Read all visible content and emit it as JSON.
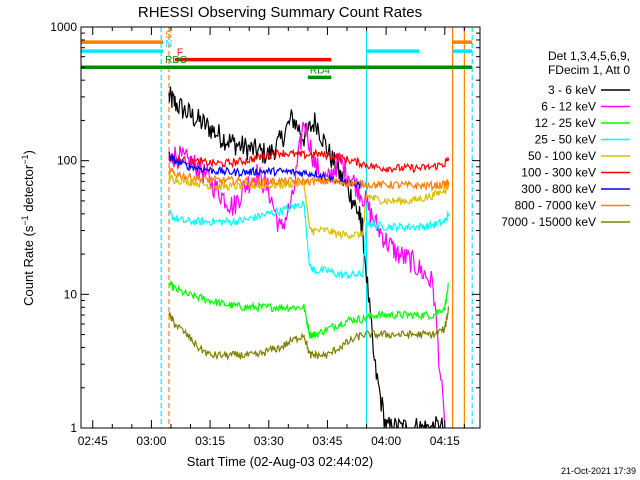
{
  "chart_data": {
    "type": "line",
    "title": "RHESSI Observing Summary Count Rates",
    "xlabel": "Start Time (02-Aug-03 02:44:02)",
    "ylabel": "Count Rate (s",
    "ylabel_sup": "−1",
    "ylabel_mid": " detector",
    "ylabel_close": ")",
    "yscale": "log",
    "ylim": [
      1,
      1000
    ],
    "xlim_minutes": [
      -2.0,
      100.0
    ],
    "x_ticks": [
      "02:45",
      "03:00",
      "03:15",
      "03:30",
      "03:45",
      "04:00",
      "04:15"
    ],
    "y_ticks": [
      "1",
      "10",
      "100",
      "1000"
    ],
    "legend_header": [
      "Det 1,3,4,5,6,9,",
      "FDecim 1, Att 0"
    ],
    "legend_position": "right",
    "timestamp": "21-Oct-2021 17:39",
    "flags": [
      {
        "name": "S",
        "color": "#ff8000",
        "segments": [
          [
            -2,
            19
          ],
          [
            93,
            98
          ]
        ],
        "level": 770
      },
      {
        "name": "N",
        "color": "#00e8f0",
        "segments": [
          [
            -2,
            19
          ],
          [
            71,
            84.5
          ],
          [
            93,
            98
          ]
        ],
        "level": 660
      },
      {
        "name": "F",
        "color": "#ff0000",
        "segments": [
          [
            22,
            62
          ]
        ],
        "level": 570
      },
      {
        "name": "RDO",
        "color": "#008c00",
        "segments": [
          [
            -2,
            98
          ]
        ],
        "level": 500
      },
      {
        "name": "RD4",
        "color": "#008c00",
        "segments": [
          [
            56,
            62
          ]
        ],
        "level": 420
      }
    ],
    "vlines": [
      {
        "x": 20.5,
        "color": "#ff8000",
        "dash": true
      },
      {
        "x": 18.5,
        "color": "#00e8f0",
        "dash": true
      },
      {
        "x": 71.0,
        "color": "#00e8f0",
        "dash": false
      },
      {
        "x": 93.0,
        "color": "#ff8000",
        "dash": false
      },
      {
        "x": 96.0,
        "color": "#ff8000",
        "dash": false
      },
      {
        "x": 98.0,
        "color": "#00e8f0",
        "dash": true
      }
    ],
    "series": [
      {
        "name": "3 - 6 keV",
        "color": "#000000",
        "x": [
          20.5,
          22,
          25,
          28,
          31,
          34,
          37,
          40,
          43,
          46,
          49,
          52,
          55,
          58,
          61,
          64,
          67,
          69,
          70,
          73,
          76,
          79,
          82,
          85,
          88,
          91
        ],
        "y": [
          300,
          270,
          230,
          200,
          175,
          150,
          135,
          125,
          118,
          110,
          140,
          210,
          150,
          200,
          120,
          80,
          55,
          40,
          30,
          3,
          1,
          1,
          1,
          1,
          1,
          1
        ]
      },
      {
        "name": "6 - 12 keV",
        "color": "#ff00ff",
        "x": [
          20.5,
          22,
          25,
          28,
          31,
          34,
          37,
          40,
          43,
          46,
          49,
          52,
          55,
          58,
          61,
          64,
          67,
          70,
          73,
          76,
          79,
          82,
          85,
          88,
          91
        ],
        "y": [
          95,
          110,
          100,
          90,
          70,
          55,
          45,
          65,
          80,
          60,
          30,
          50,
          200,
          90,
          70,
          100,
          75,
          55,
          35,
          25,
          20,
          18,
          15,
          12,
          1
        ]
      },
      {
        "name": "12 - 25 keV",
        "color": "#00ff00",
        "x": [
          20.5,
          22,
          25,
          28,
          31,
          34,
          37,
          40,
          43,
          46,
          49,
          52,
          55,
          56.5,
          58,
          61,
          64,
          67,
          70,
          73,
          76,
          79,
          82,
          85,
          88,
          91,
          92
        ],
        "y": [
          12,
          11,
          10,
          9.5,
          9,
          8.5,
          8.2,
          8,
          8,
          8,
          8,
          8,
          8,
          5,
          5,
          5.5,
          6,
          6.5,
          6.5,
          7,
          7,
          7,
          7,
          7,
          7,
          8,
          12
        ]
      },
      {
        "name": "25 - 50 keV",
        "color": "#00ffff",
        "x": [
          20.5,
          22,
          25,
          28,
          31,
          34,
          37,
          40,
          43,
          46,
          49,
          52,
          55,
          56.5,
          58,
          61,
          64,
          67,
          70,
          71,
          73,
          76,
          79,
          82,
          85,
          88,
          91,
          92
        ],
        "y": [
          40,
          37,
          35,
          35,
          35,
          35,
          35,
          36,
          38,
          40,
          42,
          45,
          48,
          16,
          15,
          15,
          14,
          14,
          14,
          35,
          33,
          32,
          32,
          32,
          32,
          33,
          35,
          40
        ]
      },
      {
        "name": "50 - 100 keV",
        "color": "#d8c000",
        "x": [
          20.5,
          22,
          25,
          28,
          31,
          34,
          37,
          40,
          43,
          46,
          49,
          52,
          55,
          56.5,
          58,
          61,
          64,
          67,
          70,
          71,
          73,
          76,
          79,
          82,
          85,
          88,
          91,
          92
        ],
        "y": [
          75,
          72,
          70,
          68,
          65,
          64,
          64,
          65,
          65,
          65,
          66,
          67,
          68,
          30,
          30,
          30,
          28,
          28,
          28,
          55,
          52,
          50,
          50,
          50,
          52,
          55,
          60,
          65
        ]
      },
      {
        "name": "100 - 300 keV",
        "color": "#ff0000",
        "x": [
          20.5,
          22,
          25,
          28,
          31,
          34,
          37,
          40,
          43,
          46,
          49,
          52,
          55,
          58,
          61,
          64,
          67,
          70,
          73,
          76,
          79,
          82,
          85,
          88,
          91,
          92
        ],
        "y": [
          105,
          102,
          100,
          98,
          96,
          95,
          97,
          100,
          105,
          110,
          115,
          112,
          110,
          112,
          110,
          105,
          100,
          95,
          90,
          88,
          88,
          88,
          88,
          90,
          95,
          105
        ]
      },
      {
        "name": "300 - 800 keV",
        "color": "#0000ff",
        "x": [
          20.5,
          22,
          25,
          28,
          31,
          34,
          37,
          40,
          43,
          46,
          49,
          52,
          55,
          58,
          61,
          64,
          67,
          70
        ],
        "y": [
          110,
          100,
          92,
          88,
          85,
          83,
          82,
          82,
          83,
          83,
          83,
          82,
          81,
          80,
          75,
          70,
          68,
          65
        ]
      },
      {
        "name": "800 - 7000 keV",
        "color": "#ff8000",
        "x": [
          20.5,
          22,
          25,
          28,
          31,
          34,
          37,
          40,
          43,
          46,
          49,
          52,
          55,
          58,
          61,
          64,
          67,
          70,
          73,
          76,
          79,
          82,
          85,
          88,
          91,
          92
        ],
        "y": [
          85,
          80,
          76,
          74,
          72,
          71,
          71,
          70,
          70,
          70,
          70,
          70,
          70,
          70,
          70,
          69,
          68,
          67,
          66,
          66,
          66,
          65,
          65,
          65,
          66,
          70
        ]
      },
      {
        "name": "7000 - 15000 keV",
        "color": "#808000",
        "x": [
          20.5,
          22,
          25,
          28,
          31,
          34,
          37,
          40,
          43,
          46,
          49,
          52,
          55,
          56.5,
          58,
          61,
          64,
          67,
          70,
          73,
          76,
          79,
          82,
          85,
          88,
          91,
          92
        ],
        "y": [
          7,
          6,
          5,
          4,
          3.5,
          3.5,
          3.5,
          3.5,
          3.5,
          3.8,
          4,
          4.5,
          5,
          3.5,
          3.5,
          3.5,
          4,
          4.5,
          5,
          5,
          5,
          5,
          5,
          5,
          5,
          5.5,
          8
        ]
      }
    ]
  }
}
